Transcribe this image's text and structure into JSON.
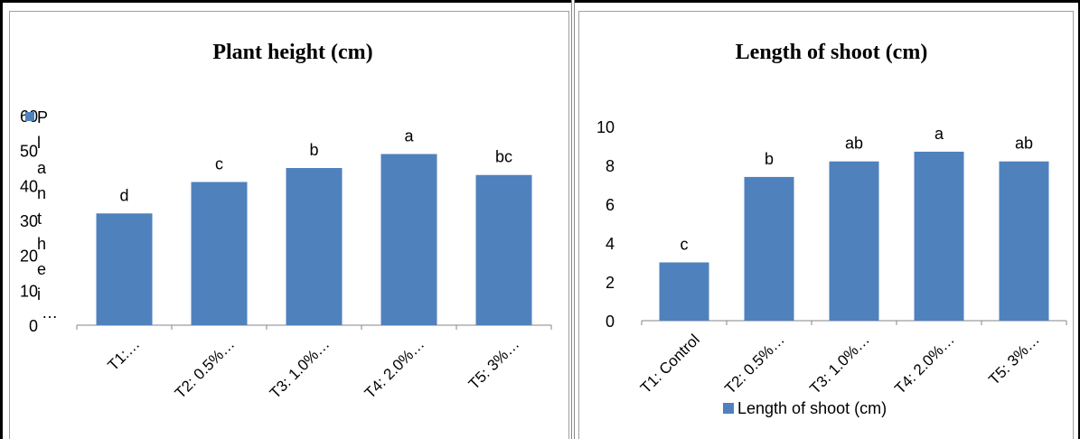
{
  "chart_data": [
    {
      "type": "bar",
      "title": "Plant height (cm)",
      "categories": [
        "T1:…",
        "T2: 0.5%…",
        "T3: 1.0%…",
        "T4: 2.0%…",
        "T5: 3%…"
      ],
      "series": [
        {
          "name": "Plant height (cm)",
          "values": [
            32,
            41,
            45,
            49,
            43
          ],
          "color": "#4F81BD"
        }
      ],
      "data_labels": [
        "d",
        "c",
        "b",
        "a",
        "bc"
      ],
      "yticks": [
        0,
        10,
        20,
        30,
        40,
        50,
        60
      ],
      "ylim": [
        0,
        60
      ],
      "xlabel": "",
      "ylabel": "",
      "legend": "left",
      "legend_text": "Plant height (cm)",
      "grid": false
    },
    {
      "type": "bar",
      "title": "Length of shoot (cm)",
      "categories": [
        "T1: Control",
        "T2: 0.5%…",
        "T3: 1.0%…",
        "T4: 2.0%…",
        "T5: 3%…"
      ],
      "series": [
        {
          "name": "Length of shoot (cm)",
          "values": [
            3.0,
            7.4,
            8.2,
            8.7,
            8.2
          ],
          "color": "#4F81BD"
        }
      ],
      "data_labels": [
        "c",
        "b",
        "ab",
        "a",
        "ab"
      ],
      "yticks": [
        0,
        2,
        4,
        6,
        8,
        10
      ],
      "ylim": [
        0,
        10
      ],
      "xlabel": "",
      "ylabel": "",
      "legend": "bottom",
      "legend_text": "Length of shoot (cm)",
      "grid": false
    }
  ]
}
